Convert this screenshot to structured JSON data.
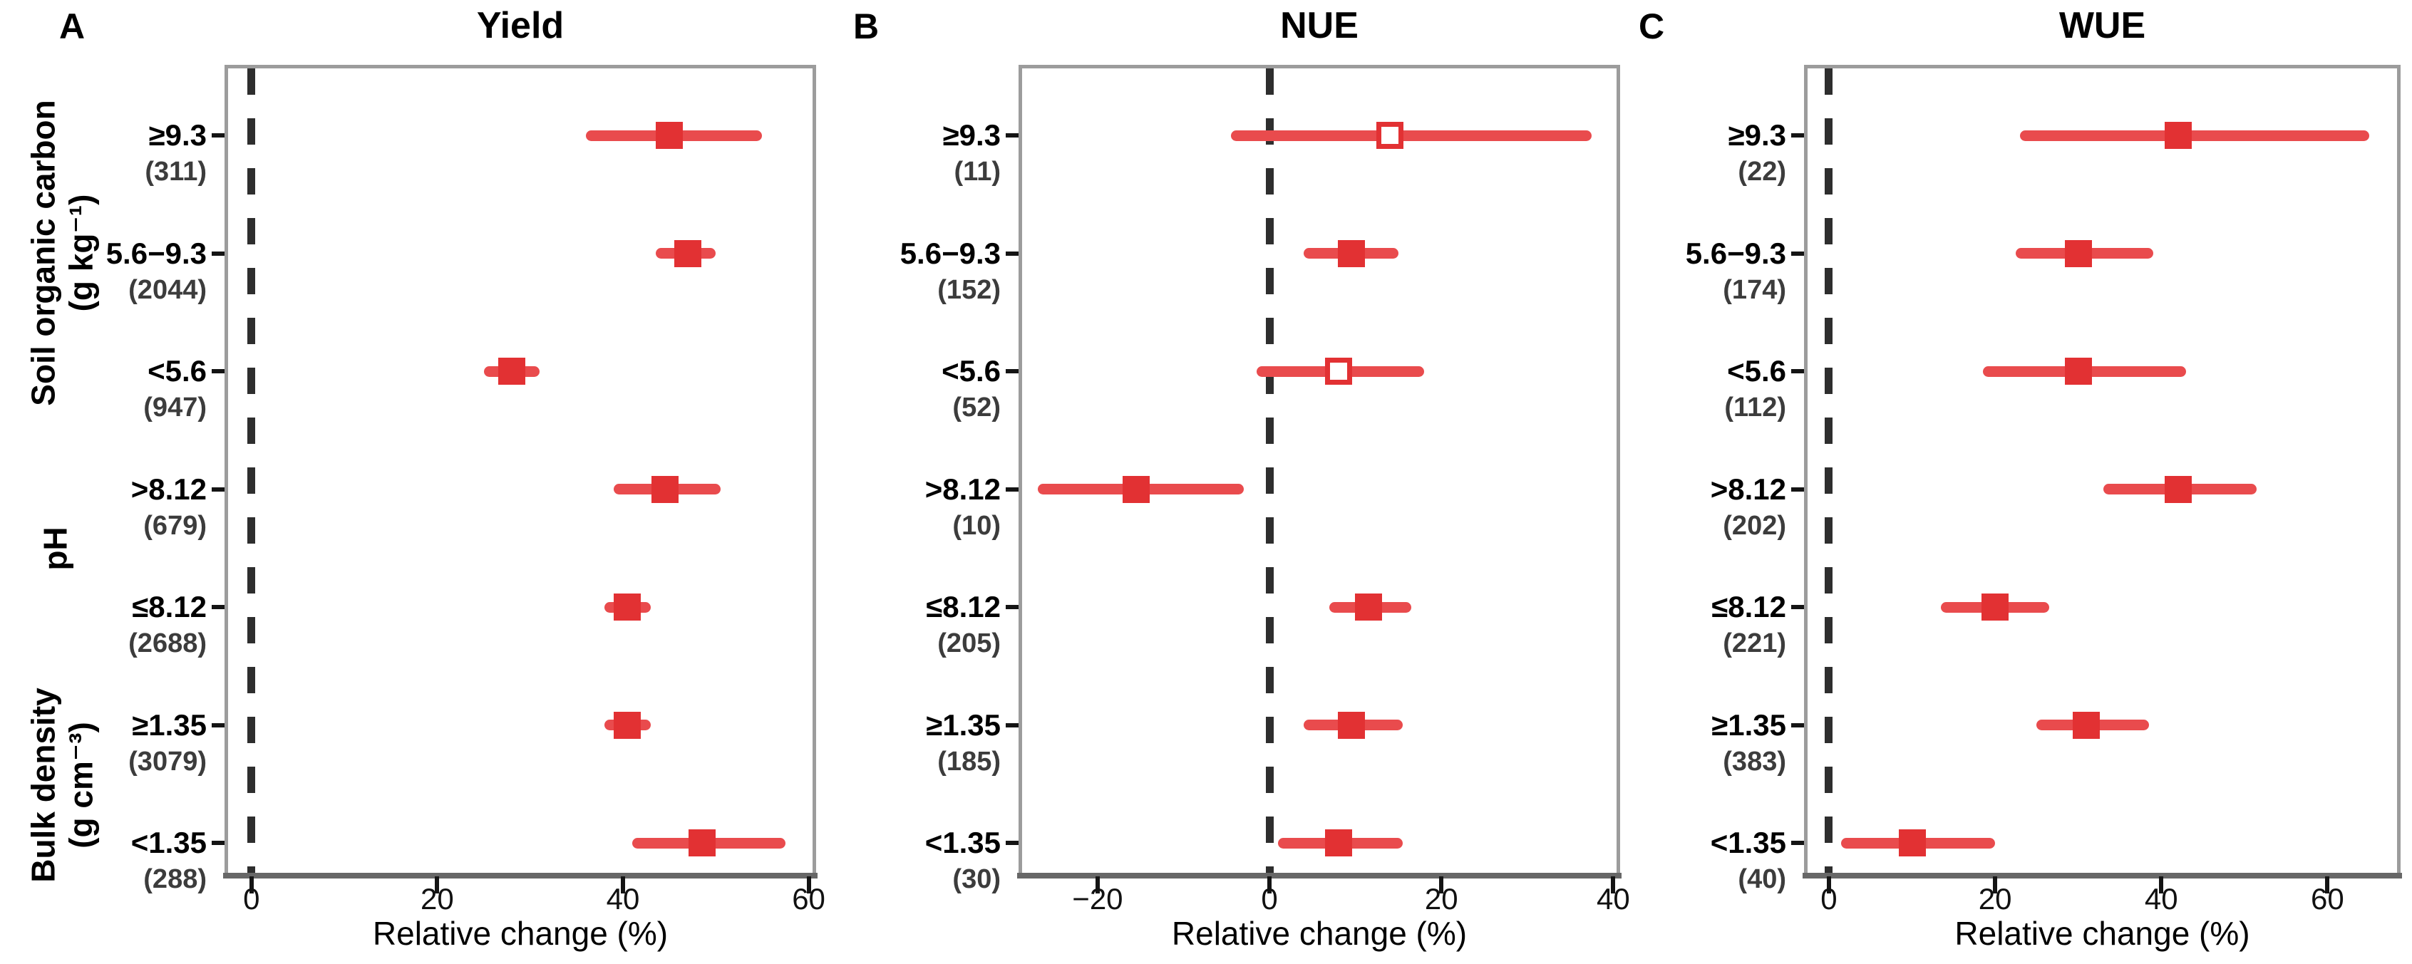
{
  "style": {
    "marker_red": "#e23133",
    "line_red": "#e94b4d",
    "dash_color": "#2e2e2e",
    "box_border": "#9c9c9c",
    "axis_line": "#676767",
    "count_text": "#3c3c3c",
    "background": "#ffffff"
  },
  "y_axis_groups": [
    {
      "lines": [
        "Soil organic carbon",
        "(g kg⁻¹)"
      ]
    },
    {
      "lines": [
        "pH"
      ]
    },
    {
      "lines": [
        "Bulk density",
        "(g cm⁻³)"
      ]
    }
  ],
  "chart_data": [
    {
      "type": "scatter",
      "variant": "forest-plot",
      "letter": "A",
      "title": "Yield",
      "xlabel": "Relative change (%)",
      "xlim": [
        -2.9,
        60.8
      ],
      "zero_line": 0,
      "grid": false,
      "xticks": [
        {
          "value": 0,
          "label": "0"
        },
        {
          "value": 20,
          "label": "20"
        },
        {
          "value": 40,
          "label": "40"
        },
        {
          "value": 60,
          "label": "60"
        }
      ],
      "rows": [
        {
          "label": "≥9.3",
          "count": "(311)",
          "est": 45,
          "lo": 36,
          "hi": 55,
          "open": false
        },
        {
          "label": "5.6−9.3",
          "count": "(2044)",
          "est": 47,
          "lo": 43.5,
          "hi": 50,
          "open": false
        },
        {
          "label": "<5.6",
          "count": "(947)",
          "est": 28,
          "lo": 25,
          "hi": 31,
          "open": false
        },
        {
          "label": ">8.12",
          "count": "(679)",
          "est": 44.5,
          "lo": 39,
          "hi": 50.5,
          "open": false
        },
        {
          "label": "≤8.12",
          "count": "(2688)",
          "est": 40.5,
          "lo": 38,
          "hi": 43,
          "open": false
        },
        {
          "label": "≥1.35",
          "count": "(3079)",
          "est": 40.5,
          "lo": 38,
          "hi": 43,
          "open": false
        },
        {
          "label": "<1.35",
          "count": "(288)",
          "est": 48.5,
          "lo": 41,
          "hi": 57.5,
          "open": false
        }
      ]
    },
    {
      "type": "scatter",
      "variant": "forest-plot",
      "letter": "B",
      "title": "NUE",
      "xlabel": "Relative change (%)",
      "xlim": [
        -29.2,
        40.8
      ],
      "zero_line": 0,
      "grid": false,
      "xticks": [
        {
          "value": -20,
          "label": "−20"
        },
        {
          "value": 0,
          "label": "0"
        },
        {
          "value": 20,
          "label": "20"
        },
        {
          "value": 40,
          "label": "40"
        }
      ],
      "rows": [
        {
          "label": "≥9.3",
          "count": "(11)",
          "est": 14,
          "lo": -4.5,
          "hi": 37.5,
          "open": true
        },
        {
          "label": "5.6−9.3",
          "count": "(152)",
          "est": 9.5,
          "lo": 4,
          "hi": 15,
          "open": false
        },
        {
          "label": "<5.6",
          "count": "(52)",
          "est": 8,
          "lo": -1.5,
          "hi": 18,
          "open": true
        },
        {
          "label": ">8.12",
          "count": "(10)",
          "est": -15.5,
          "lo": -27,
          "hi": -3,
          "open": false
        },
        {
          "label": "≤8.12",
          "count": "(205)",
          "est": 11.5,
          "lo": 7,
          "hi": 16.5,
          "open": false
        },
        {
          "label": "≥1.35",
          "count": "(185)",
          "est": 9.5,
          "lo": 4,
          "hi": 15.5,
          "open": false
        },
        {
          "label": "<1.35",
          "count": "(30)",
          "est": 8,
          "lo": 1,
          "hi": 15.5,
          "open": false
        }
      ]
    },
    {
      "type": "scatter",
      "variant": "forest-plot",
      "letter": "C",
      "title": "WUE",
      "xlabel": "Relative change (%)",
      "xlim": [
        -3.0,
        68.8
      ],
      "zero_line": 0,
      "grid": false,
      "xticks": [
        {
          "value": 0,
          "label": "0"
        },
        {
          "value": 20,
          "label": "20"
        },
        {
          "value": 40,
          "label": "40"
        },
        {
          "value": 60,
          "label": "60"
        }
      ],
      "rows": [
        {
          "label": "≥9.3",
          "count": "(22)",
          "est": 42,
          "lo": 23,
          "hi": 65,
          "open": false
        },
        {
          "label": "5.6−9.3",
          "count": "(174)",
          "est": 30,
          "lo": 22.5,
          "hi": 39,
          "open": false
        },
        {
          "label": "<5.6",
          "count": "(112)",
          "est": 30,
          "lo": 18.5,
          "hi": 43,
          "open": false
        },
        {
          "label": ">8.12",
          "count": "(202)",
          "est": 42,
          "lo": 33,
          "hi": 51.5,
          "open": false
        },
        {
          "label": "≤8.12",
          "count": "(221)",
          "est": 20,
          "lo": 13.5,
          "hi": 26.5,
          "open": false
        },
        {
          "label": "≥1.35",
          "count": "(383)",
          "est": 31,
          "lo": 25,
          "hi": 38.5,
          "open": false
        },
        {
          "label": "<1.35",
          "count": "(40)",
          "est": 10,
          "lo": 1.5,
          "hi": 20,
          "open": false
        }
      ]
    }
  ]
}
